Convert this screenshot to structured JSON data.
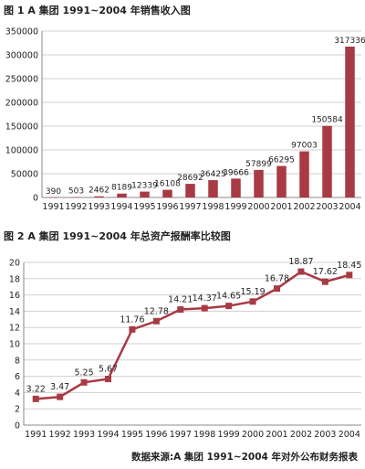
{
  "chart_data": [
    {
      "type": "bar",
      "title": "图 1 A 集团 1991~2004 年销售收入图",
      "categories": [
        "1991",
        "1992",
        "1993",
        "1994",
        "1995",
        "1996",
        "1997",
        "1998",
        "1999",
        "2000",
        "2001",
        "2002",
        "2003",
        "2004"
      ],
      "values": [
        390,
        503,
        2462,
        8189,
        12339,
        16108,
        28692,
        36425,
        39666,
        57899,
        66295,
        97003,
        150584,
        317336
      ],
      "data_labels": [
        "390",
        "503",
        "2462",
        "8189",
        "12339",
        "16108",
        "28692",
        "36425",
        "39666",
        "57899",
        "66295",
        "97003",
        "150584",
        "317336"
      ],
      "ylim": [
        0,
        350000
      ],
      "yticks": [
        "0",
        "50000",
        "100000",
        "150000",
        "200000",
        "250000",
        "300000",
        "350000"
      ],
      "grid": true,
      "color": "#a83a44"
    },
    {
      "type": "line",
      "title": "图 2 A 集团 1991~2004 年总资产报酬率比较图",
      "categories": [
        "1991",
        "1992",
        "1993",
        "1994",
        "1995",
        "1996",
        "1997",
        "1998",
        "1999",
        "2000",
        "2001",
        "2002",
        "2003",
        "2004"
      ],
      "values": [
        3.22,
        3.47,
        5.25,
        5.67,
        11.76,
        12.78,
        14.21,
        14.37,
        14.65,
        15.19,
        16.78,
        18.87,
        17.62,
        18.45
      ],
      "data_labels": [
        "3.22",
        "3.47",
        "5.25",
        "5.67",
        "11.76",
        "12.78",
        "14.21",
        "14.37",
        "14.65",
        "15.19",
        "16.78",
        "18.87",
        "17.62",
        "18.45"
      ],
      "ylim": [
        0,
        20
      ],
      "yticks": [
        "0",
        "2",
        "4",
        "6",
        "8",
        "10",
        "12",
        "14",
        "16",
        "18",
        "20"
      ],
      "grid": true,
      "color": "#a83a44"
    }
  ],
  "source": "数据来源:A 集团 1991~2004 年对外公布财务报表"
}
